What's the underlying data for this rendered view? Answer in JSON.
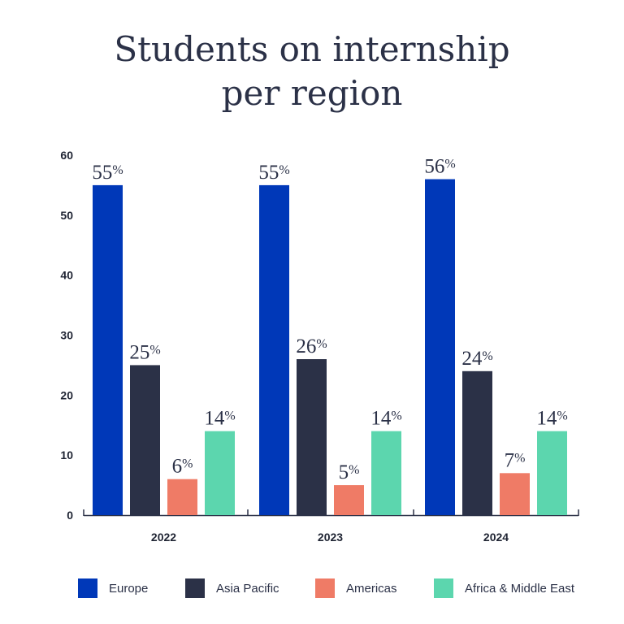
{
  "chart_data": {
    "type": "bar",
    "title_lines": [
      "Students on internship",
      "per region"
    ],
    "categories": [
      "2022",
      "2023",
      "2024"
    ],
    "series": [
      {
        "name": "Europe",
        "color": "#0038b8",
        "values": [
          55,
          55,
          56
        ]
      },
      {
        "name": "Asia Pacific",
        "color": "#2b3147",
        "values": [
          25,
          26,
          24
        ]
      },
      {
        "name": "Americas",
        "color": "#ef7b66",
        "values": [
          6,
          5,
          7
        ]
      },
      {
        "name": "Africa & Middle East",
        "color": "#5cd6ae",
        "values": [
          14,
          14,
          14
        ]
      }
    ],
    "value_suffix": "%",
    "ylim": [
      0,
      60
    ],
    "yticks": [
      0,
      10,
      20,
      30,
      40,
      50,
      60
    ],
    "xlabel": "",
    "ylabel": "",
    "grid": false,
    "legend_position": "bottom"
  }
}
